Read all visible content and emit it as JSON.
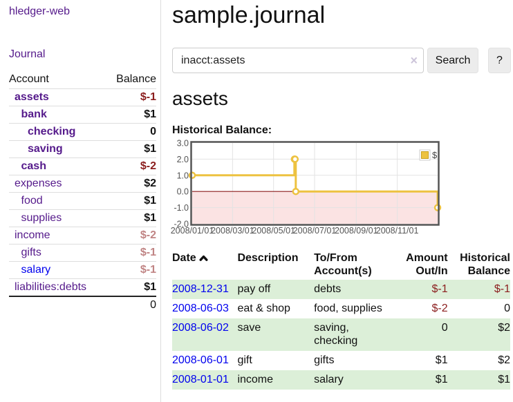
{
  "app": {
    "brand": "hledger-web",
    "nav": {
      "journal": "Journal"
    }
  },
  "sidebar": {
    "table_headers": {
      "account": "Account",
      "balance": "Balance"
    },
    "accounts": [
      {
        "name": "assets",
        "balance": "$-1",
        "depth": 1,
        "bold": true,
        "balance_color": "strong-negative"
      },
      {
        "name": "bank",
        "balance": "$1",
        "depth": 2,
        "bold": true,
        "balance_color": "normal"
      },
      {
        "name": "checking",
        "balance": "0",
        "depth": 3,
        "bold": true,
        "balance_color": "normal"
      },
      {
        "name": "saving",
        "balance": "$1",
        "depth": 3,
        "bold": true,
        "balance_color": "normal"
      },
      {
        "name": "cash",
        "balance": "$-2",
        "depth": 2,
        "bold": true,
        "balance_color": "strong-negative"
      },
      {
        "name": "expenses",
        "balance": "$2",
        "depth": 1,
        "bold": false,
        "balance_color": "normal"
      },
      {
        "name": "food",
        "balance": "$1",
        "depth": 2,
        "bold": false,
        "balance_color": "normal"
      },
      {
        "name": "supplies",
        "balance": "$1",
        "depth": 2,
        "bold": false,
        "balance_color": "normal"
      },
      {
        "name": "income",
        "balance": "$-2",
        "depth": 1,
        "bold": false,
        "balance_color": "pale-negative"
      },
      {
        "name": "gifts",
        "balance": "$-1",
        "depth": 2,
        "bold": false,
        "balance_color": "pale-negative"
      },
      {
        "name": "salary",
        "balance": "$-1",
        "depth": 2,
        "bold": false,
        "balance_color": "pale-negative",
        "link_color": "blue"
      },
      {
        "name": "liabilities:debts",
        "balance": "$1",
        "depth": 1,
        "bold": false,
        "balance_color": "normal"
      }
    ],
    "total": "0"
  },
  "main": {
    "title": "sample.journal",
    "search": {
      "value": "inacct:assets",
      "clear_icon": "×",
      "search_label": "Search",
      "help_label": "?"
    },
    "account_heading": "assets",
    "chart_label": "Historical Balance:"
  },
  "chart_data": {
    "type": "line",
    "title": "Historical Balance:",
    "step": true,
    "series": [
      {
        "name": "$",
        "color": "#edc240",
        "points": [
          {
            "date": "2008-01-01",
            "value": 1
          },
          {
            "date": "2008-06-01",
            "value": 2
          },
          {
            "date": "2008-06-02",
            "value": 2
          },
          {
            "date": "2008-06-03",
            "value": 0
          },
          {
            "date": "2008-12-31",
            "value": -1
          }
        ]
      }
    ],
    "x_range": [
      "2008-01-01",
      "2008-12-31"
    ],
    "ylim": [
      -2,
      3
    ],
    "y_ticks": [
      3.0,
      2.0,
      1.0,
      0.0,
      -1.0,
      -2.0
    ],
    "x_ticks": [
      "2008/01/01",
      "2008/03/01",
      "2008/05/01",
      "2008/07/01",
      "2008/09/01",
      "2008/11/01"
    ],
    "grid": true,
    "legend_position": "top-right",
    "legend_label": "$",
    "zero_line_color": "#8b1a1a",
    "negative_region_color": "#fbe3e3",
    "tick_color": "#545454"
  },
  "register": {
    "columns": [
      "Date",
      "Description",
      "To/From Account(s)",
      "Amount Out/In",
      "Historical Balance"
    ],
    "rows": [
      {
        "date": "2008-12-31",
        "description": "pay off",
        "accounts": "debts",
        "amount": "$-1",
        "amount_negative": true,
        "balance": "$-1",
        "balance_negative": true
      },
      {
        "date": "2008-06-03",
        "description": "eat & shop",
        "accounts": "food, supplies",
        "amount": "$-2",
        "amount_negative": true,
        "balance": "0",
        "balance_negative": false
      },
      {
        "date": "2008-06-02",
        "description": "save",
        "accounts": "saving, checking",
        "amount": "0",
        "amount_negative": false,
        "balance": "$2",
        "balance_negative": false
      },
      {
        "date": "2008-06-01",
        "description": "gift",
        "accounts": "gifts",
        "amount": "$1",
        "amount_negative": false,
        "balance": "$2",
        "balance_negative": false
      },
      {
        "date": "2008-01-01",
        "description": "income",
        "accounts": "salary",
        "amount": "$1",
        "amount_negative": false,
        "balance": "$1",
        "balance_negative": false
      }
    ]
  },
  "colors": {
    "link_purple": "#551A8B",
    "link_blue": "#0000EE",
    "negative_strong": "#8b1d1d",
    "negative_pale": "#c08484",
    "row_stripe_green": "#dcefd8",
    "chart_line": "#edc240",
    "button_bg": "#ececec"
  }
}
